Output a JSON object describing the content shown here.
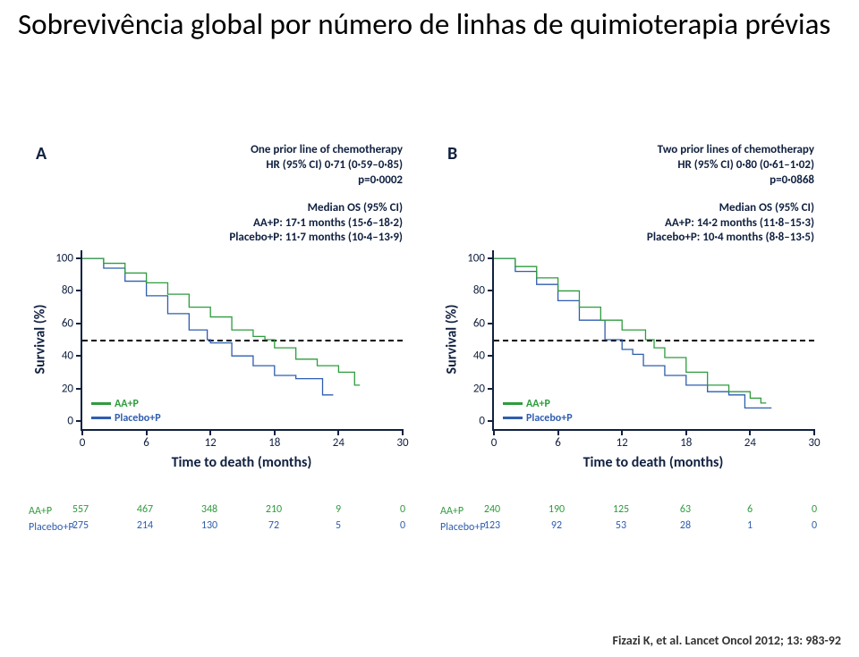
{
  "title": "Sobrevivência global por número de linhas de quimioterapia prévias",
  "citation": "Fizazi K, et al. Lancet Oncol 2012; 13: 983-92",
  "colors": {
    "aa": "#2e9c3e",
    "placebo": "#2f5db0",
    "axis": "#102040",
    "ref50": "#000000",
    "bg": "#ffffff"
  },
  "axes": {
    "x_label": "Time to death (months)",
    "y_label": "Survival (%)",
    "x_ticks": [
      0,
      6,
      12,
      18,
      24,
      30
    ],
    "y_ticks": [
      0,
      20,
      40,
      60,
      80,
      100
    ],
    "xlim": [
      0,
      30
    ],
    "ylim": [
      -5,
      105
    ]
  },
  "legend": {
    "aa": "AA+P",
    "placebo": "Placebo+P"
  },
  "panels": [
    {
      "label": "A",
      "caption_top": [
        "One prior line of chemotherapy",
        "HR (95% CI) 0·71 (0·59–0·85)",
        "p=0·0002"
      ],
      "caption_mid": [
        "Median OS (95% CI)",
        "AA+P: 17·1 months (15·6–18·2)",
        "Placebo+P: 11·7 months (10·4–13·9)"
      ],
      "curves": {
        "aa": [
          [
            0,
            100
          ],
          [
            2,
            97
          ],
          [
            4,
            91
          ],
          [
            6,
            85
          ],
          [
            8,
            78
          ],
          [
            10,
            70
          ],
          [
            12,
            64
          ],
          [
            14,
            56
          ],
          [
            16,
            52
          ],
          [
            17.1,
            50
          ],
          [
            18,
            45
          ],
          [
            20,
            38
          ],
          [
            22,
            34
          ],
          [
            24,
            30
          ],
          [
            25,
            30
          ],
          [
            25.5,
            22
          ],
          [
            26,
            22
          ]
        ],
        "placebo": [
          [
            0,
            100
          ],
          [
            2,
            94
          ],
          [
            4,
            86
          ],
          [
            6,
            77
          ],
          [
            8,
            66
          ],
          [
            10,
            56
          ],
          [
            11.7,
            50
          ],
          [
            12,
            48
          ],
          [
            14,
            40
          ],
          [
            16,
            34
          ],
          [
            18,
            28
          ],
          [
            20,
            26
          ],
          [
            21,
            26
          ],
          [
            22.5,
            16
          ],
          [
            23,
            16
          ],
          [
            23.5,
            16
          ]
        ]
      },
      "risk": {
        "aa": {
          "label": "AA+P",
          "values": [
            557,
            467,
            348,
            210,
            9,
            0
          ]
        },
        "placebo": {
          "label": "Placebo+P",
          "values": [
            275,
            214,
            130,
            72,
            5,
            0
          ]
        }
      }
    },
    {
      "label": "B",
      "caption_top": [
        "Two prior lines of chemotherapy",
        "HR (95% CI) 0·80 (0·61–1·02)",
        "p=0·0868"
      ],
      "caption_mid": [
        "Median OS (95% CI)",
        "AA+P: 14·2 months (11·8–15·3)",
        "Placebo+P: 10·4 months (8·8–13·5)"
      ],
      "curves": {
        "aa": [
          [
            0,
            100
          ],
          [
            2,
            95
          ],
          [
            4,
            88
          ],
          [
            6,
            80
          ],
          [
            8,
            70
          ],
          [
            10,
            62
          ],
          [
            12,
            56
          ],
          [
            14.2,
            50
          ],
          [
            15,
            45
          ],
          [
            16,
            39
          ],
          [
            18,
            30
          ],
          [
            20,
            22
          ],
          [
            22,
            18
          ],
          [
            23,
            18
          ],
          [
            24,
            14
          ],
          [
            25,
            11
          ],
          [
            25.5,
            11
          ]
        ],
        "placebo": [
          [
            0,
            100
          ],
          [
            2,
            92
          ],
          [
            4,
            84
          ],
          [
            6,
            74
          ],
          [
            8,
            62
          ],
          [
            10.4,
            50
          ],
          [
            12,
            44
          ],
          [
            13,
            41
          ],
          [
            14,
            34
          ],
          [
            16,
            28
          ],
          [
            18,
            22
          ],
          [
            20,
            18
          ],
          [
            22,
            16
          ],
          [
            23,
            16
          ],
          [
            23.5,
            8
          ],
          [
            24,
            8
          ],
          [
            25,
            8
          ],
          [
            26,
            8
          ]
        ]
      },
      "risk": {
        "aa": {
          "label": "AA+P",
          "values": [
            240,
            190,
            125,
            63,
            6,
            0
          ]
        },
        "placebo": {
          "label": "Placebo+P",
          "values": [
            123,
            92,
            53,
            28,
            1,
            0
          ]
        }
      }
    }
  ]
}
